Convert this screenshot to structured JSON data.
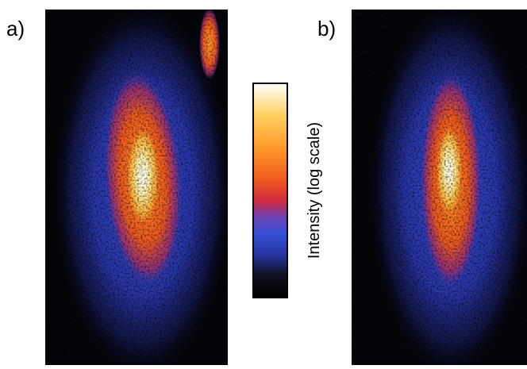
{
  "panels": [
    {
      "label": "a)"
    },
    {
      "label": "b)"
    }
  ],
  "colorbar": {
    "label": "Intensity (log scale)"
  }
}
